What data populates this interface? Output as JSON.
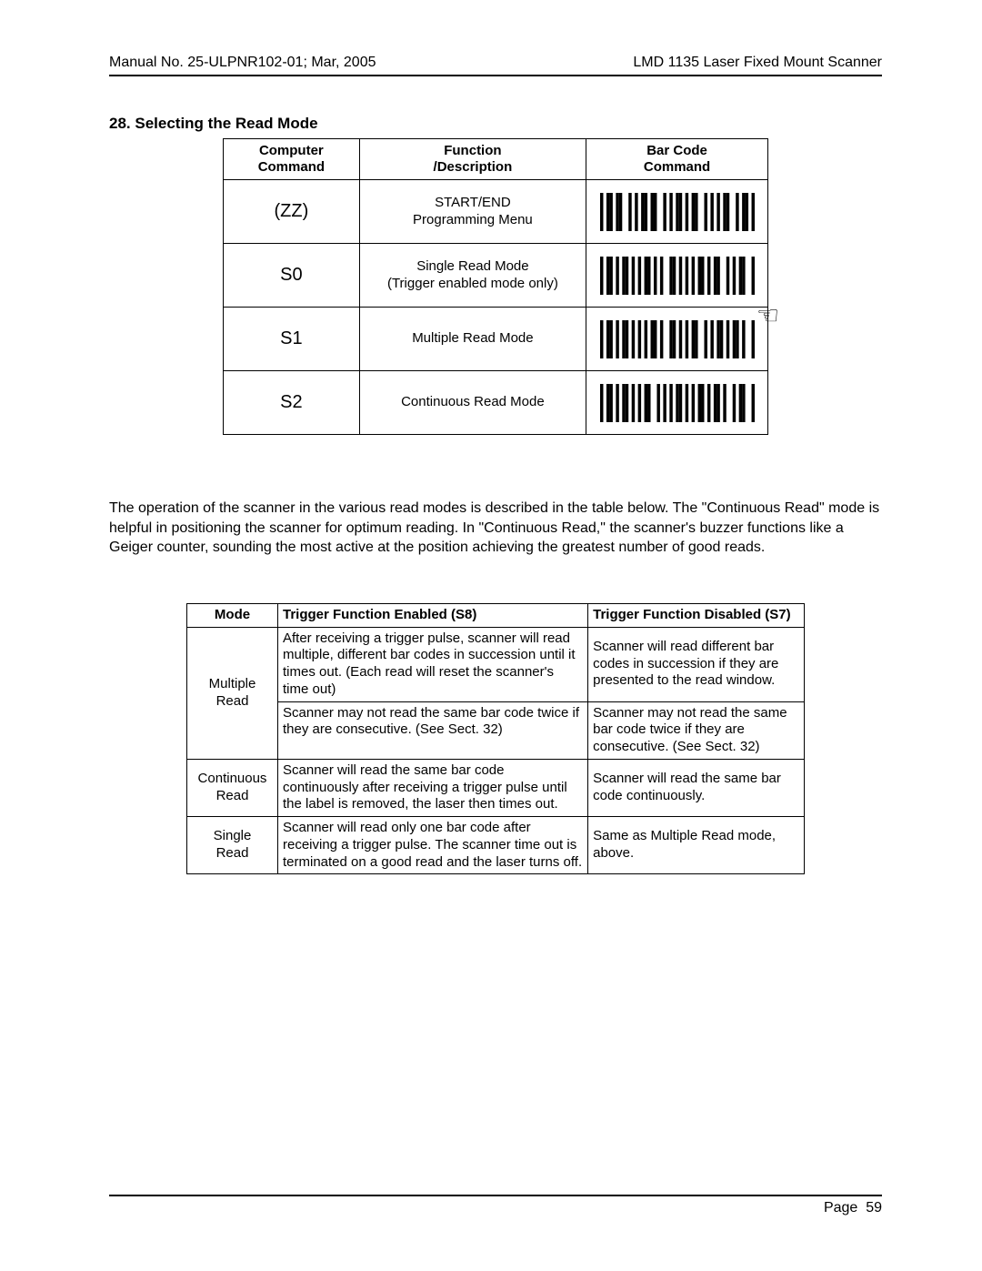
{
  "header": {
    "left": "Manual No. 25-ULPNR102-01; Mar, 2005",
    "right": "LMD 1135 Laser Fixed Mount Scanner"
  },
  "section": {
    "title": "28. Selecting the Read Mode"
  },
  "cmd_table": {
    "headers": {
      "col1a": "Computer",
      "col1b": "Command",
      "col2a": "Function",
      "col2b": "/Description",
      "col3a": "Bar Code",
      "col3b": "Command"
    },
    "rows": [
      {
        "cmd": "(ZZ)",
        "desc1": "START/END",
        "desc2": "Programming Menu",
        "bars": "1011011001010110110010101101011001010101100101101"
      },
      {
        "cmd": "S0",
        "desc1": "Single Read Mode",
        "desc2": "(Trigger enabled mode only)",
        "bars": "1011010110101011010100110101010110101100101011001"
      },
      {
        "cmd": "S1",
        "desc1": "Multiple Read Mode",
        "desc2": "",
        "bars": "1011010110101010110100110101011001010110101101001"
      },
      {
        "cmd": "S2",
        "desc1": "Continuous Read Mode",
        "desc2": "",
        "bars": "1011010110101011001010101101010110101101001011001"
      }
    ]
  },
  "barcode_style": {
    "width": 170,
    "height": 42,
    "module": 3.4,
    "color": "#000000"
  },
  "paragraph": "The operation of the scanner in the various read modes is described in the table below.  The \"Continuous Read\" mode is helpful in positioning the scanner for optimum reading.  In \"Continuous Read,\" the scanner's buzzer functions like a Geiger counter, sounding the most active at the position achieving the greatest number of good reads.",
  "mode_table": {
    "headers": {
      "mode": "Mode",
      "enabled": "Trigger Function Enabled (S8)",
      "disabled": "Trigger Function Disabled (S7)"
    },
    "rows": [
      {
        "mode": "Multiple Read",
        "enabled": "After receiving a trigger pulse, scanner will read multiple, different bar codes in succession until it times out. (Each read will reset the scanner's time out)",
        "disabled": "Scanner will read different bar codes in succession if they are presented to the read window.",
        "enabled2": "Scanner may not read the same bar code twice if they are consecutive. (See Sect. 32)",
        "disabled2": "Scanner may not read the same bar code twice if they are consecutive. (See Sect. 32)",
        "rowspan": 2
      },
      {
        "mode": "Continuous Read",
        "enabled": "Scanner will read the same bar code continuously after receiving a trigger pulse until the label is removed, the laser then times out.",
        "disabled": "Scanner will read the same bar code continuously."
      },
      {
        "mode": "Single Read",
        "enabled": "Scanner will read only one bar code after receiving a trigger pulse. The scanner time out is terminated on a good read and the laser turns off.",
        "disabled": "Same as Multiple Read mode, above."
      }
    ]
  },
  "footer": {
    "label": "Page",
    "num": "59"
  },
  "colors": {
    "text": "#000000",
    "bg": "#ffffff",
    "border": "#000000"
  }
}
